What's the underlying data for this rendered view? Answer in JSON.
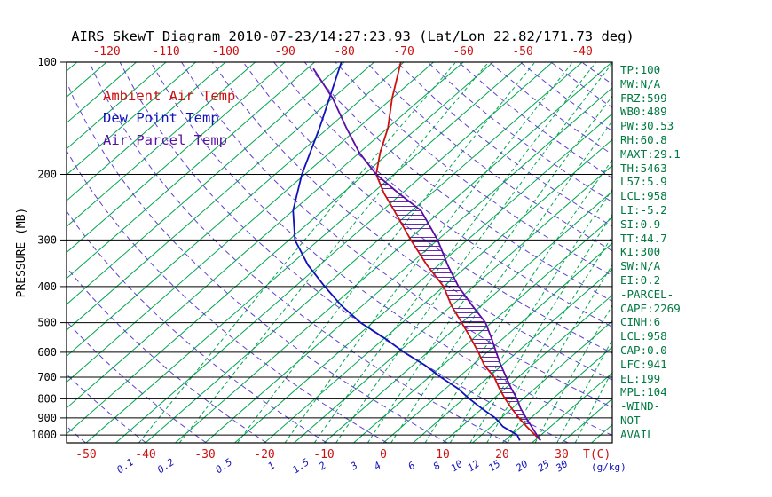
{
  "title": "AIRS SkewT Diagram 2010-07-23/14:27:23.93 (Lat/Lon 22.82/171.73 deg)",
  "stats": [
    "TP:100",
    "MW:N/A",
    "FRZ:599",
    "WB0:489",
    "PW:30.53",
    "RH:60.8",
    "MAXT:29.1",
    "TH:5463",
    "L57:5.9",
    "LCL:958",
    "LI:-5.2",
    "SI:0.9",
    "TT:44.7",
    "KI:300",
    "SW:N/A",
    "EI:0.2",
    "-PARCEL-",
    "CAPE:2269",
    "CINH:6",
    "LCL:958",
    "CAP:0.0",
    "LFC:941",
    "EL:199",
    "MPL:104",
    "-WIND-",
    "NOT",
    "AVAIL"
  ],
  "colors": {
    "ambient": "#cc1111",
    "dewpoint": "#1111bb",
    "parcel": "#5b0ea6",
    "isotherm": "#00a651",
    "adiabat": "#5d3fd3",
    "stats_text": "#007a40",
    "axis": "#000000"
  },
  "chart_data": {
    "type": "line",
    "plot_kind": "skew-t log-p atmospheric sounding",
    "y_axis": {
      "label": "PRESSURE (MB)",
      "scale": "log",
      "ticks": [
        100,
        200,
        300,
        400,
        500,
        600,
        700,
        800,
        900,
        1000
      ],
      "range": [
        100,
        1050
      ]
    },
    "x_axis": {
      "label": "T(C)",
      "top_ticks": [
        -120,
        -110,
        -100,
        -90,
        -80,
        -70,
        -60,
        -50,
        -40
      ],
      "bottom_ticks": [
        -50,
        -40,
        -30,
        -20,
        -10,
        0,
        10,
        20,
        30
      ]
    },
    "mixing_ratio_g_kg": [
      0.1,
      0.2,
      0.5,
      1,
      1.5,
      2,
      3,
      4,
      6,
      8,
      10,
      12,
      15,
      20,
      25,
      30
    ],
    "mixing_ratio_label": "(g/kg)",
    "isotherms_c": {
      "min": -130,
      "max": 45,
      "step": 5
    },
    "dry_adiabats_k": {
      "min": 210,
      "max": 500,
      "step": 10
    },
    "series": [
      {
        "id": "ambient",
        "name": "Ambient Air Temp",
        "color": "#cc1111",
        "points_p_t": [
          [
            1035,
            26
          ],
          [
            1000,
            24
          ],
          [
            950,
            21
          ],
          [
            900,
            18
          ],
          [
            850,
            15
          ],
          [
            800,
            12
          ],
          [
            750,
            9
          ],
          [
            700,
            6
          ],
          [
            650,
            2
          ],
          [
            600,
            -1.5
          ],
          [
            550,
            -5.5
          ],
          [
            500,
            -10
          ],
          [
            450,
            -15
          ],
          [
            400,
            -20
          ],
          [
            350,
            -27
          ],
          [
            300,
            -34.5
          ],
          [
            250,
            -43
          ],
          [
            225,
            -48
          ],
          [
            200,
            -53
          ],
          [
            175,
            -56.5
          ],
          [
            150,
            -60
          ],
          [
            125,
            -65
          ],
          [
            100,
            -70.5
          ]
        ]
      },
      {
        "id": "dewpoint",
        "name": "Dew Point Temp",
        "color": "#1111bb",
        "points_p_t": [
          [
            1035,
            22.5
          ],
          [
            1000,
            21
          ],
          [
            950,
            17
          ],
          [
            900,
            14
          ],
          [
            850,
            10
          ],
          [
            800,
            6
          ],
          [
            750,
            2
          ],
          [
            700,
            -3
          ],
          [
            650,
            -8
          ],
          [
            600,
            -14
          ],
          [
            550,
            -20
          ],
          [
            500,
            -27
          ],
          [
            450,
            -33.5
          ],
          [
            400,
            -40
          ],
          [
            350,
            -47
          ],
          [
            300,
            -54
          ],
          [
            250,
            -60
          ],
          [
            200,
            -65.5
          ],
          [
            150,
            -71.5
          ],
          [
            100,
            -80.5
          ]
        ]
      },
      {
        "id": "parcel",
        "name": "Air Parcel Temp",
        "color": "#5b0ea6",
        "points_p_t": [
          [
            1035,
            26
          ],
          [
            1000,
            24.3
          ],
          [
            950,
            21.8
          ],
          [
            900,
            19.2
          ],
          [
            850,
            16.5
          ],
          [
            800,
            14
          ],
          [
            750,
            11
          ],
          [
            700,
            8
          ],
          [
            650,
            4.8
          ],
          [
            600,
            1.5
          ],
          [
            550,
            -2
          ],
          [
            500,
            -6
          ],
          [
            450,
            -11.5
          ],
          [
            400,
            -17.5
          ],
          [
            350,
            -23.5
          ],
          [
            300,
            -30
          ],
          [
            250,
            -38.5
          ],
          [
            225,
            -45.5
          ],
          [
            200,
            -53
          ],
          [
            175,
            -60
          ],
          [
            150,
            -67
          ],
          [
            125,
            -75
          ],
          [
            104,
            -84
          ]
        ]
      }
    ],
    "cape_region": {
      "between": [
        "parcel",
        "ambient"
      ],
      "hatch_between_pressures": [
        950,
        200
      ],
      "lfc_mb": 941,
      "el_mb": 199,
      "hatch": "horizontal"
    }
  }
}
